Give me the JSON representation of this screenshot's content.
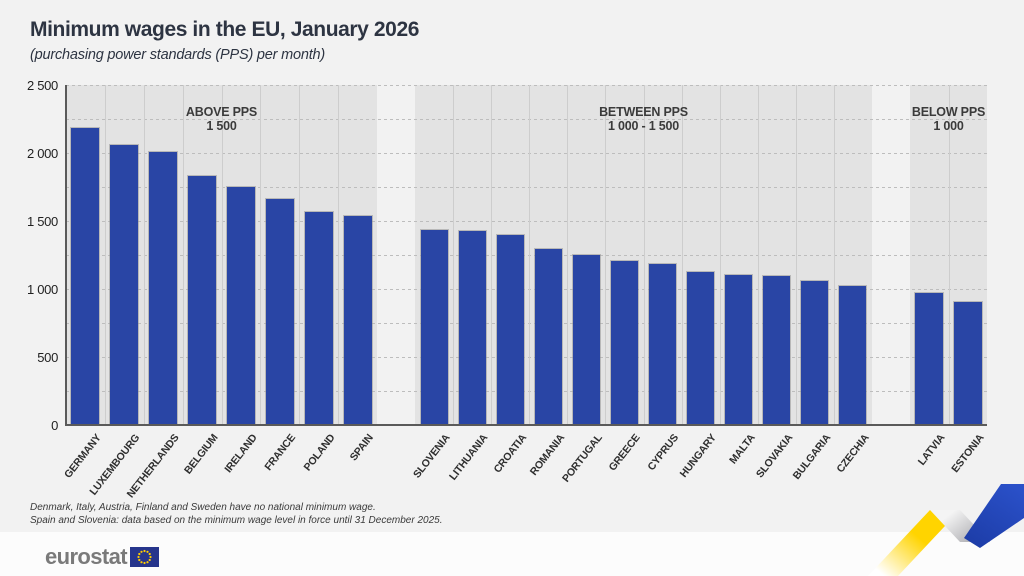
{
  "header": {
    "title": "Minimum wages in the EU, January 2026",
    "subtitle": "(purchasing power standards (PPS) per month)"
  },
  "chart_data": {
    "type": "bar",
    "title": "Minimum wages in the EU, January 2026",
    "subtitle": "(purchasing power standards (PPS) per month)",
    "ylim": [
      0,
      2500
    ],
    "yticks": [
      0,
      500,
      1000,
      1500,
      2000,
      2500
    ],
    "ytick_labels": [
      "0",
      "500",
      "1 000",
      "1 500",
      "2 000",
      "2 500"
    ],
    "grid": "horizontal-dashed-every-250",
    "bar_color": "#2945a5",
    "panel_bg": "#e3e3e3",
    "groups": [
      {
        "label_line1": "ABOVE PPS",
        "label_line2": "1 500",
        "categories": [
          "GERMANY",
          "LUXEMBOURG",
          "NETHERLANDS",
          "BELGIUM",
          "IRELAND",
          "FRANCE",
          "POLAND",
          "SPAIN"
        ],
        "values": [
          2185,
          2060,
          2005,
          1830,
          1750,
          1660,
          1565,
          1540
        ]
      },
      {
        "label_line1": "BETWEEN PPS",
        "label_line2": "1 000 - 1 500",
        "categories": [
          "SLOVENIA",
          "LITHUANIA",
          "CROATIA",
          "ROMANIA",
          "PORTUGAL",
          "GREECE",
          "CYPRUS",
          "HUNGARY",
          "MALTA",
          "SLOVAKIA",
          "BULGARIA",
          "CZECHIA"
        ],
        "values": [
          1435,
          1425,
          1395,
          1295,
          1250,
          1205,
          1185,
          1125,
          1105,
          1095,
          1060,
          1020
        ]
      },
      {
        "label_line1": "BELOW PPS",
        "label_line2": "1 000",
        "categories": [
          "LATVIA",
          "ESTONIA"
        ],
        "values": [
          970,
          905
        ]
      }
    ]
  },
  "footnotes": {
    "line1": "Denmark, Italy, Austria, Finland and Sweden have no national minimum wage.",
    "line2": "Spain and Slovenia: data based on the minimum wage level in force until 31 December 2025."
  },
  "footer": {
    "logo_text": "eurostat"
  },
  "decor": {
    "ribbon_yellow": "#FFD400",
    "ribbon_blue": "#2A50C8",
    "ribbon_gray": "#ABABAF",
    "flag_blue": "#26358C",
    "flag_star_yellow": "#FFCC00"
  }
}
